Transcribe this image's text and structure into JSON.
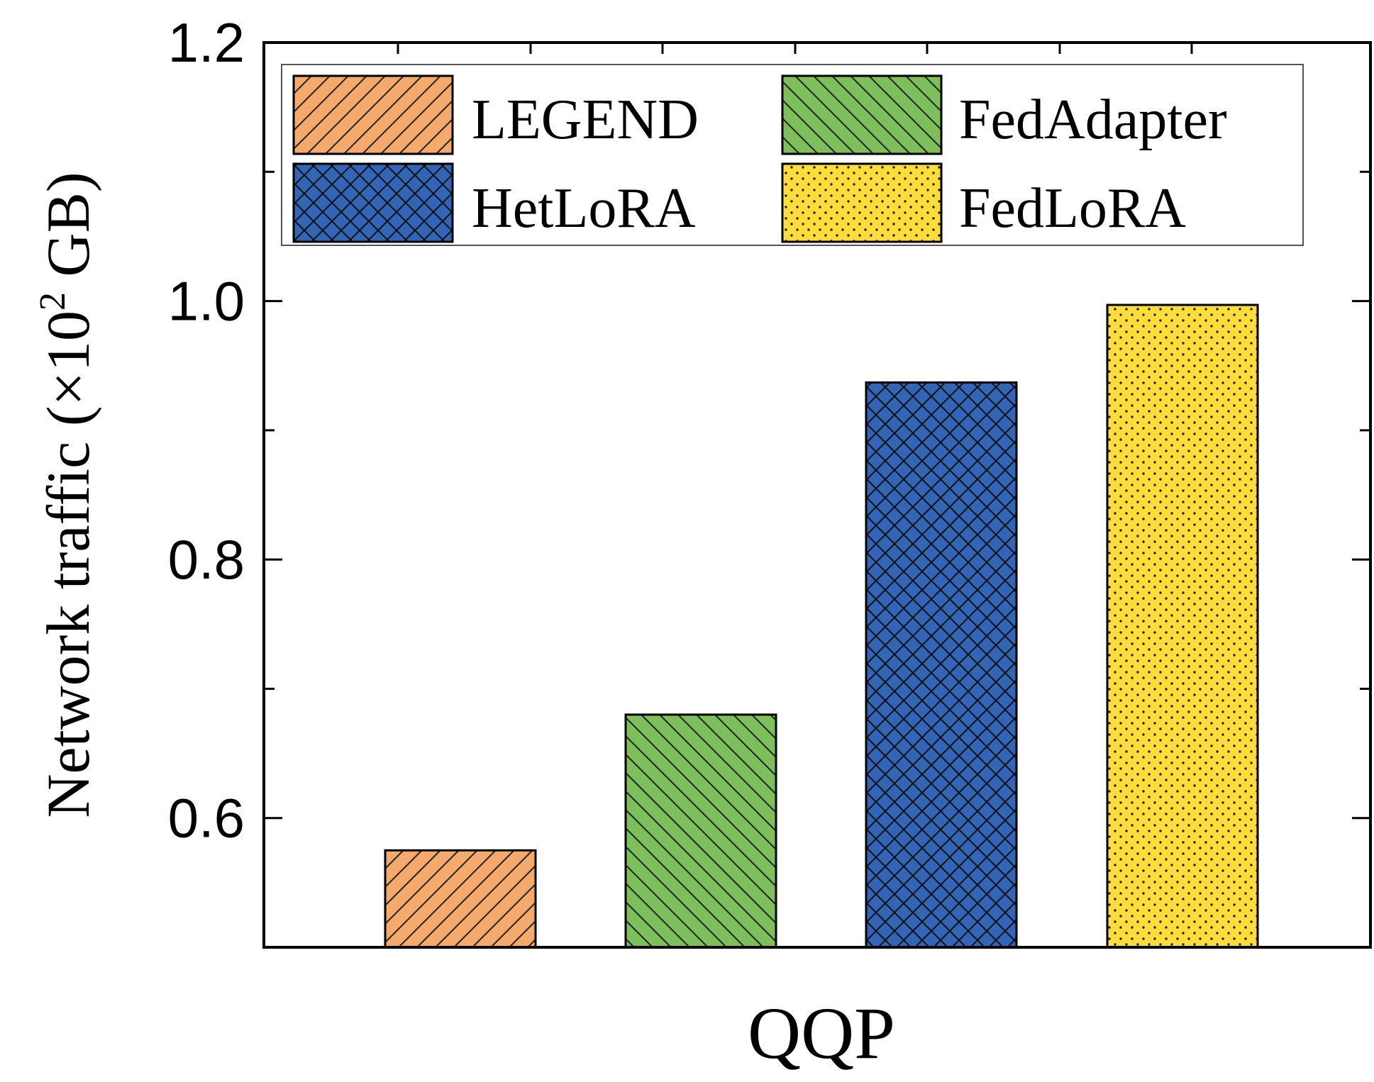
{
  "chart_data": {
    "type": "bar",
    "categories": [
      "QQP"
    ],
    "series": [
      {
        "name": "LEGEND",
        "values": [
          0.575
        ],
        "color": "#F5A96B",
        "pattern": "diag-forward"
      },
      {
        "name": "FedAdapter",
        "values": [
          0.68
        ],
        "color": "#7CBF5B",
        "pattern": "diag-back"
      },
      {
        "name": "HetLoRA",
        "values": [
          0.937
        ],
        "color": "#3265B6",
        "pattern": "crosshatch"
      },
      {
        "name": "FedLoRA",
        "values": [
          0.997
        ],
        "color": "#FCDD3B",
        "pattern": "dots"
      }
    ],
    "ylim": [
      0.5,
      1.2
    ],
    "yticks": [
      "0.6",
      "0.8",
      "1.0",
      "1.2"
    ],
    "ylabel_main": "Network traffic (×10",
    "ylabel_sup": "2",
    "ylabel_end": " GB)",
    "xlabel": "QQP",
    "legend_position": "top",
    "grid": false
  }
}
